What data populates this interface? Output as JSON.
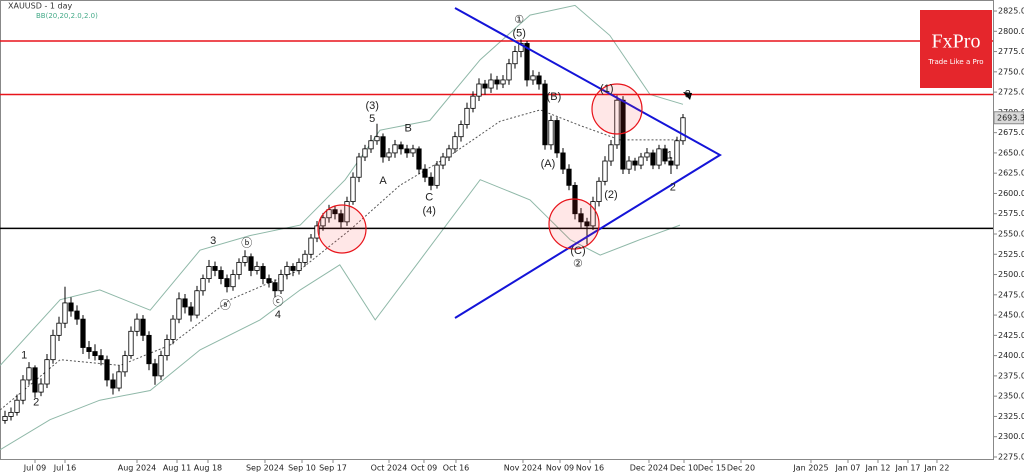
{
  "chart_data": {
    "type": "candlestick",
    "title": "XAUUSD - 1 day",
    "subtitle": "BB(20,20,2.0,2.0)",
    "logo": {
      "brand": "FxPro",
      "tagline": "Trade Like a Pro",
      "color": "#e5262c"
    },
    "up_color": "#ffffff",
    "down_color": "#000000",
    "xlim": [
      -0.833,
      164.67
    ],
    "ylim": [
      2272.5,
      2838.6
    ],
    "grid": false,
    "candles": [
      [
        2320,
        2332,
        2316,
        2325
      ],
      [
        2325,
        2336,
        2320,
        2330
      ],
      [
        2330,
        2352,
        2326,
        2345
      ],
      [
        2345,
        2376,
        2340,
        2370
      ],
      [
        2370,
        2392,
        2364,
        2385
      ],
      [
        2385,
        2388,
        2348,
        2355
      ],
      [
        2355,
        2372,
        2350,
        2365
      ],
      [
        2365,
        2402,
        2360,
        2395
      ],
      [
        2395,
        2432,
        2390,
        2425
      ],
      [
        2425,
        2448,
        2418,
        2440
      ],
      [
        2440,
        2485,
        2434,
        2465
      ],
      [
        2465,
        2472,
        2448,
        2455
      ],
      [
        2455,
        2462,
        2438,
        2445
      ],
      [
        2445,
        2450,
        2402,
        2410
      ],
      [
        2410,
        2418,
        2396,
        2405
      ],
      [
        2405,
        2414,
        2394,
        2400
      ],
      [
        2400,
        2408,
        2388,
        2395
      ],
      [
        2395,
        2400,
        2362,
        2370
      ],
      [
        2370,
        2378,
        2352,
        2360
      ],
      [
        2360,
        2388,
        2356,
        2380
      ],
      [
        2380,
        2406,
        2374,
        2400
      ],
      [
        2400,
        2436,
        2396,
        2430
      ],
      [
        2430,
        2452,
        2424,
        2445
      ],
      [
        2445,
        2450,
        2418,
        2425
      ],
      [
        2425,
        2430,
        2382,
        2390
      ],
      [
        2390,
        2396,
        2364,
        2375
      ],
      [
        2375,
        2406,
        2370,
        2400
      ],
      [
        2400,
        2426,
        2394,
        2420
      ],
      [
        2420,
        2450,
        2414,
        2445
      ],
      [
        2445,
        2478,
        2440,
        2470
      ],
      [
        2470,
        2476,
        2452,
        2460
      ],
      [
        2460,
        2466,
        2442,
        2450
      ],
      [
        2450,
        2486,
        2446,
        2480
      ],
      [
        2480,
        2500,
        2474,
        2495
      ],
      [
        2495,
        2518,
        2490,
        2510
      ],
      [
        2510,
        2516,
        2498,
        2505
      ],
      [
        2505,
        2510,
        2488,
        2495
      ],
      [
        2495,
        2500,
        2478,
        2485
      ],
      [
        2485,
        2506,
        2480,
        2500
      ],
      [
        2500,
        2520,
        2494,
        2515
      ],
      [
        2515,
        2530,
        2510,
        2522
      ],
      [
        2522,
        2526,
        2498,
        2505
      ],
      [
        2505,
        2516,
        2500,
        2510
      ],
      [
        2510,
        2514,
        2488,
        2495
      ],
      [
        2495,
        2500,
        2484,
        2490
      ],
      [
        2490,
        2494,
        2472,
        2480
      ],
      [
        2480,
        2506,
        2476,
        2500
      ],
      [
        2500,
        2516,
        2494,
        2510
      ],
      [
        2510,
        2514,
        2498,
        2505
      ],
      [
        2505,
        2520,
        2500,
        2515
      ],
      [
        2515,
        2530,
        2510,
        2525
      ],
      [
        2525,
        2550,
        2520,
        2545
      ],
      [
        2545,
        2566,
        2540,
        2560
      ],
      [
        2560,
        2576,
        2554,
        2570
      ],
      [
        2570,
        2586,
        2564,
        2580
      ],
      [
        2580,
        2584,
        2568,
        2575
      ],
      [
        2575,
        2580,
        2558,
        2565
      ],
      [
        2565,
        2596,
        2560,
        2590
      ],
      [
        2590,
        2626,
        2586,
        2620
      ],
      [
        2620,
        2650,
        2614,
        2645
      ],
      [
        2645,
        2660,
        2640,
        2655
      ],
      [
        2655,
        2672,
        2650,
        2665
      ],
      [
        2665,
        2686,
        2660,
        2670
      ],
      [
        2670,
        2674,
        2638,
        2645
      ],
      [
        2645,
        2656,
        2640,
        2650
      ],
      [
        2650,
        2666,
        2644,
        2660
      ],
      [
        2660,
        2664,
        2648,
        2655
      ],
      [
        2655,
        2660,
        2644,
        2650
      ],
      [
        2650,
        2660,
        2645,
        2655
      ],
      [
        2655,
        2658,
        2624,
        2630
      ],
      [
        2630,
        2636,
        2614,
        2620
      ],
      [
        2620,
        2626,
        2604,
        2610
      ],
      [
        2610,
        2640,
        2606,
        2635
      ],
      [
        2635,
        2650,
        2630,
        2645
      ],
      [
        2645,
        2660,
        2640,
        2655
      ],
      [
        2655,
        2676,
        2650,
        2670
      ],
      [
        2670,
        2690,
        2664,
        2685
      ],
      [
        2685,
        2712,
        2680,
        2705
      ],
      [
        2705,
        2726,
        2700,
        2720
      ],
      [
        2720,
        2742,
        2714,
        2735
      ],
      [
        2735,
        2740,
        2722,
        2730
      ],
      [
        2730,
        2748,
        2724,
        2740
      ],
      [
        2740,
        2745,
        2728,
        2735
      ],
      [
        2735,
        2746,
        2730,
        2740
      ],
      [
        2740,
        2766,
        2734,
        2760
      ],
      [
        2760,
        2782,
        2754,
        2775
      ],
      [
        2775,
        2790,
        2768,
        2785
      ],
      [
        2785,
        2788,
        2732,
        2740
      ],
      [
        2740,
        2752,
        2734,
        2745
      ],
      [
        2745,
        2750,
        2728,
        2735
      ],
      [
        2735,
        2740,
        2654,
        2660
      ],
      [
        2660,
        2696,
        2654,
        2690
      ],
      [
        2690,
        2694,
        2644,
        2650
      ],
      [
        2650,
        2656,
        2624,
        2630
      ],
      [
        2630,
        2636,
        2604,
        2610
      ],
      [
        2610,
        2614,
        2568,
        2575
      ],
      [
        2575,
        2582,
        2558,
        2565
      ],
      [
        2565,
        2570,
        2537,
        2560
      ],
      [
        2560,
        2596,
        2555,
        2590
      ],
      [
        2590,
        2620,
        2584,
        2615
      ],
      [
        2615,
        2646,
        2610,
        2640
      ],
      [
        2640,
        2666,
        2634,
        2660
      ],
      [
        2660,
        2721,
        2655,
        2715
      ],
      [
        2715,
        2720,
        2624,
        2630
      ],
      [
        2630,
        2646,
        2624,
        2640
      ],
      [
        2640,
        2644,
        2628,
        2635
      ],
      [
        2635,
        2650,
        2630,
        2645
      ],
      [
        2645,
        2656,
        2640,
        2650
      ],
      [
        2650,
        2654,
        2630,
        2635
      ],
      [
        2635,
        2660,
        2630,
        2655
      ],
      [
        2655,
        2660,
        2636,
        2640
      ],
      [
        2640,
        2645,
        2624,
        2635
      ],
      [
        2635,
        2670,
        2630,
        2665
      ],
      [
        2665,
        2698,
        2660,
        2693.36
      ]
    ],
    "last_price": 2693.36,
    "bands": [
      {
        "color": "#8fb8a8",
        "dash": false,
        "x": [
          -0.8,
          9.2,
          15.8,
          24.2,
          32.5,
          40.8,
          49.2,
          56.7,
          62.5,
          70.8,
          79.2,
          87.5,
          95,
          100.8,
          107.5,
          113
        ],
        "values": [
          2388,
          2469,
          2481,
          2456,
          2530,
          2548,
          2561,
          2617,
          2678,
          2690,
          2765,
          2820,
          2832,
          2795,
          2722,
          2710
        ]
      },
      {
        "color": "#555555",
        "dash": true,
        "x": [
          -0.8,
          9.2,
          19.2,
          27.5,
          37.5,
          49.2,
          57.5,
          65.8,
          74.2,
          82.5,
          89.2,
          95.8,
          102.5,
          113
        ],
        "values": [
          2333,
          2395,
          2388,
          2413,
          2469,
          2506,
          2555,
          2610,
          2647,
          2689,
          2703,
          2684,
          2666,
          2666
        ]
      },
      {
        "color": "#8fb8a8",
        "dash": false,
        "x": [
          -0.8,
          7.5,
          15.8,
          24.2,
          32.5,
          42.5,
          49.2,
          55.8,
          61.7,
          69.2,
          79.2,
          87.5,
          94.2,
          99.2,
          105.8,
          112.5
        ],
        "values": [
          2284,
          2321,
          2345,
          2357,
          2407,
          2444,
          2481,
          2512,
          2444,
          2518,
          2617,
          2592,
          2543,
          2524,
          2543,
          2561
        ]
      }
    ],
    "levels": [
      {
        "value": 2788,
        "color": "#e8141b"
      },
      {
        "value": 2722,
        "color": "#e8141b"
      },
      {
        "value": 2557,
        "color": "#000000"
      }
    ],
    "annotations": [
      {
        "text": "1",
        "x": 3.2,
        "y": 2400
      },
      {
        "text": "2",
        "x": 5.2,
        "y": 2342
      },
      {
        "text": "3",
        "x": 34.7,
        "y": 2541
      },
      {
        "text": "ⓑ",
        "x": 40.3,
        "y": 2538
      },
      {
        "text": "ⓐ",
        "x": 36.7,
        "y": 2462
      },
      {
        "text": "ⓒ",
        "x": 45.5,
        "y": 2466
      },
      {
        "text": "4",
        "x": 45.5,
        "y": 2450
      },
      {
        "text": "(3)",
        "x": 61.2,
        "y": 2708
      },
      {
        "text": "5",
        "x": 61.2,
        "y": 2692
      },
      {
        "text": "B",
        "x": 67.2,
        "y": 2680
      },
      {
        "text": "A",
        "x": 63,
        "y": 2615
      },
      {
        "text": "C",
        "x": 70.7,
        "y": 2595
      },
      {
        "text": "(4)",
        "x": 70.7,
        "y": 2578
      },
      {
        "text": "①",
        "x": 85.7,
        "y": 2814
      },
      {
        "text": "(5)",
        "x": 85.7,
        "y": 2797
      },
      {
        "text": "(B)",
        "x": 91.5,
        "y": 2719
      },
      {
        "text": "(A)",
        "x": 90.5,
        "y": 2636
      },
      {
        "text": "(1)",
        "x": 100.3,
        "y": 2729
      },
      {
        "text": "1",
        "x": 110.8,
        "y": 2647
      },
      {
        "text": "(2)",
        "x": 101,
        "y": 2598
      },
      {
        "text": "2",
        "x": 111.3,
        "y": 2607
      },
      {
        "text": "3",
        "x": 113.8,
        "y": 2722
      },
      {
        "text": "(C)",
        "x": 95.5,
        "y": 2529
      },
      {
        "text": "②",
        "x": 95.5,
        "y": 2513
      }
    ],
    "xticks": [
      {
        "value": 5,
        "label": "Jul 09"
      },
      {
        "value": 10,
        "label": "Jul 16"
      },
      {
        "value": 22,
        "label": "Aug 2024"
      },
      {
        "value": 28.67,
        "label": "Aug 11"
      },
      {
        "value": 33.83,
        "label": "Aug 18"
      },
      {
        "value": 43.33,
        "label": "Sep 2024"
      },
      {
        "value": 49.5,
        "label": "Sep 10"
      },
      {
        "value": 54.67,
        "label": "Sep 17"
      },
      {
        "value": 64,
        "label": "Oct 2024"
      },
      {
        "value": 69.83,
        "label": "Oct 09"
      },
      {
        "value": 75.17,
        "label": "Oct 16"
      },
      {
        "value": 86.33,
        "label": "Nov 2024"
      },
      {
        "value": 92.5,
        "label": "Nov 09"
      },
      {
        "value": 97.5,
        "label": "Nov 16"
      },
      {
        "value": 107.33,
        "label": "Dec 2024"
      },
      {
        "value": 113.17,
        "label": "Dec 10"
      },
      {
        "value": 117.83,
        "label": "Dec 15"
      },
      {
        "value": 122.67,
        "label": "Dec 20"
      },
      {
        "value": 134.33,
        "label": "Jan 2025"
      },
      {
        "value": 140.5,
        "label": "Jan 07"
      },
      {
        "value": 145.5,
        "label": "Jan 12"
      },
      {
        "value": 150.5,
        "label": "Jan 17"
      },
      {
        "value": 155.33,
        "label": "Jan 22"
      }
    ],
    "yticks": [
      {
        "value": 2275,
        "label": "2275.00"
      },
      {
        "value": 2300,
        "label": "2300.00"
      },
      {
        "value": 2325,
        "label": "2325.00"
      },
      {
        "value": 2350,
        "label": "2350.00"
      },
      {
        "value": 2375,
        "label": "2375.00"
      },
      {
        "value": 2400,
        "label": "2400.00"
      },
      {
        "value": 2425,
        "label": "2425.00"
      },
      {
        "value": 2450,
        "label": "2450.00"
      },
      {
        "value": 2475,
        "label": "2475.00"
      },
      {
        "value": 2500,
        "label": "2500.00"
      },
      {
        "value": 2525,
        "label": "2525.00"
      },
      {
        "value": 2550,
        "label": "2550.00"
      },
      {
        "value": 2575,
        "label": "2575.00"
      },
      {
        "value": 2600,
        "label": "2600.00"
      },
      {
        "value": 2625,
        "label": "2625.00"
      },
      {
        "value": 2650,
        "label": "2650.00"
      },
      {
        "value": 2675,
        "label": "2675.00"
      },
      {
        "value": 2700,
        "label": "2700.00"
      },
      {
        "value": 2725,
        "label": "2725.00"
      },
      {
        "value": 2750,
        "label": "2750.00"
      },
      {
        "value": 2775,
        "label": "2775.00"
      },
      {
        "value": 2800,
        "label": "2800.00"
      },
      {
        "value": 2825,
        "label": "2825.00"
      }
    ]
  }
}
